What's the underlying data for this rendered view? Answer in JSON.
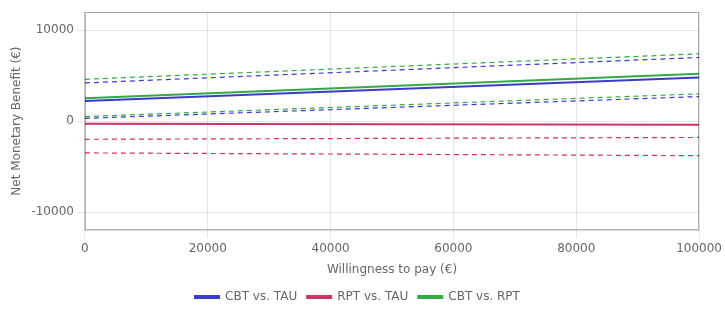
{
  "chart_data": {
    "type": "line",
    "x": [
      0,
      100000
    ],
    "xlabel": "Willingness to pay (€)",
    "ylabel": "Net Monetary Benefit (€)",
    "xlim": [
      0,
      100000
    ],
    "xticks": [
      0,
      20000,
      40000,
      60000,
      80000,
      100000
    ],
    "ylim": [
      -12000,
      12000
    ],
    "yticks": [
      -10000,
      0,
      10000
    ],
    "grid": true,
    "legend": "bottom",
    "series": [
      {
        "name": "CBT vs. TAU",
        "color": "#3a3acc",
        "values": [
          2200,
          4800
        ],
        "ci_upper": [
          4200,
          7000
        ],
        "ci_lower": [
          300,
          2700
        ]
      },
      {
        "name": "RPT vs. TAU",
        "color": "#cc3366",
        "values": [
          -300,
          -400
        ],
        "ci_upper": [
          -2000,
          -1800
        ],
        "ci_lower": [
          -3500,
          -3800
        ]
      },
      {
        "name": "CBT vs. RPT",
        "color": "#33aa44",
        "values": [
          2500,
          5200
        ],
        "ci_upper": [
          4600,
          7400
        ],
        "ci_lower": [
          500,
          3000
        ]
      }
    ]
  }
}
